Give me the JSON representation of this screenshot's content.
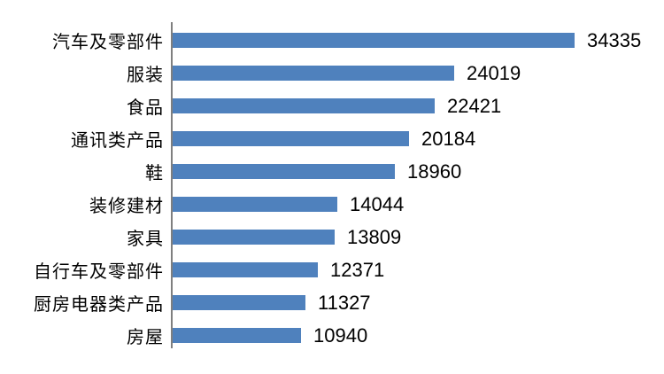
{
  "chart_data": {
    "type": "bar",
    "orientation": "horizontal",
    "title": "",
    "xlabel": "",
    "ylabel": "",
    "categories": [
      "汽车及零部件",
      "服装",
      "食品",
      "通讯类产品",
      "鞋",
      "装修建材",
      "家具",
      "自行车及零部件",
      "厨房电器类产品",
      "房屋"
    ],
    "values": [
      34335,
      24019,
      22421,
      20184,
      18960,
      14044,
      13809,
      12371,
      11327,
      10940
    ],
    "value_labels": [
      "34335",
      "24019",
      "22421",
      "20184",
      "18960",
      "14044",
      "13809",
      "12371",
      "11327",
      "10940"
    ],
    "sorted": "descending",
    "grid": false,
    "legend_position": "none",
    "xlim": [
      0,
      34335
    ],
    "colors": {
      "bar": "#4F81BD",
      "axis": "#7F7F7F",
      "text": "#000000",
      "background": "#FFFFFF"
    }
  }
}
